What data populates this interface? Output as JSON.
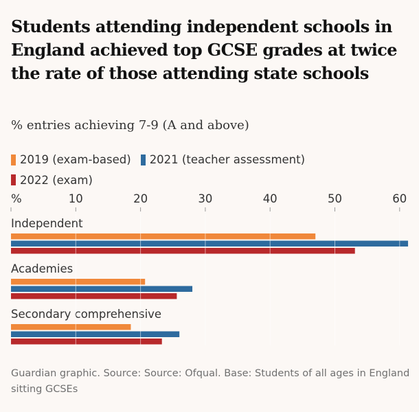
{
  "title": "Students attending independent schools in England achieved top GCSE grades at twice the rate of those attending state schools",
  "subtitle": "% entries achieving 7-9 (A and above)",
  "footer": "Guardian graphic. Source: Source: Ofqual. Base: Students of all ages in England sitting GCSEs",
  "chart_data": {
    "type": "bar",
    "orientation": "horizontal",
    "categories": [
      "Independent",
      "Academies",
      "Secondary comprehensive"
    ],
    "series": [
      {
        "name": "2019 (exam-based)",
        "color": "#f0883a",
        "values": [
          47.0,
          20.7,
          18.5
        ]
      },
      {
        "name": "2021 (teacher assessment)",
        "color": "#2e6b9e",
        "values": [
          61.3,
          28.0,
          26.0
        ]
      },
      {
        "name": "2022 (exam)",
        "color": "#b8292b",
        "values": [
          53.1,
          25.6,
          23.3
        ]
      }
    ],
    "x_ticks": [
      "%",
      "10",
      "20",
      "30",
      "40",
      "50",
      "60"
    ],
    "x_tick_values": [
      0,
      10,
      20,
      30,
      40,
      50,
      60
    ],
    "xlim": [
      0,
      62
    ],
    "grid": true,
    "legend_position": "top-left"
  }
}
